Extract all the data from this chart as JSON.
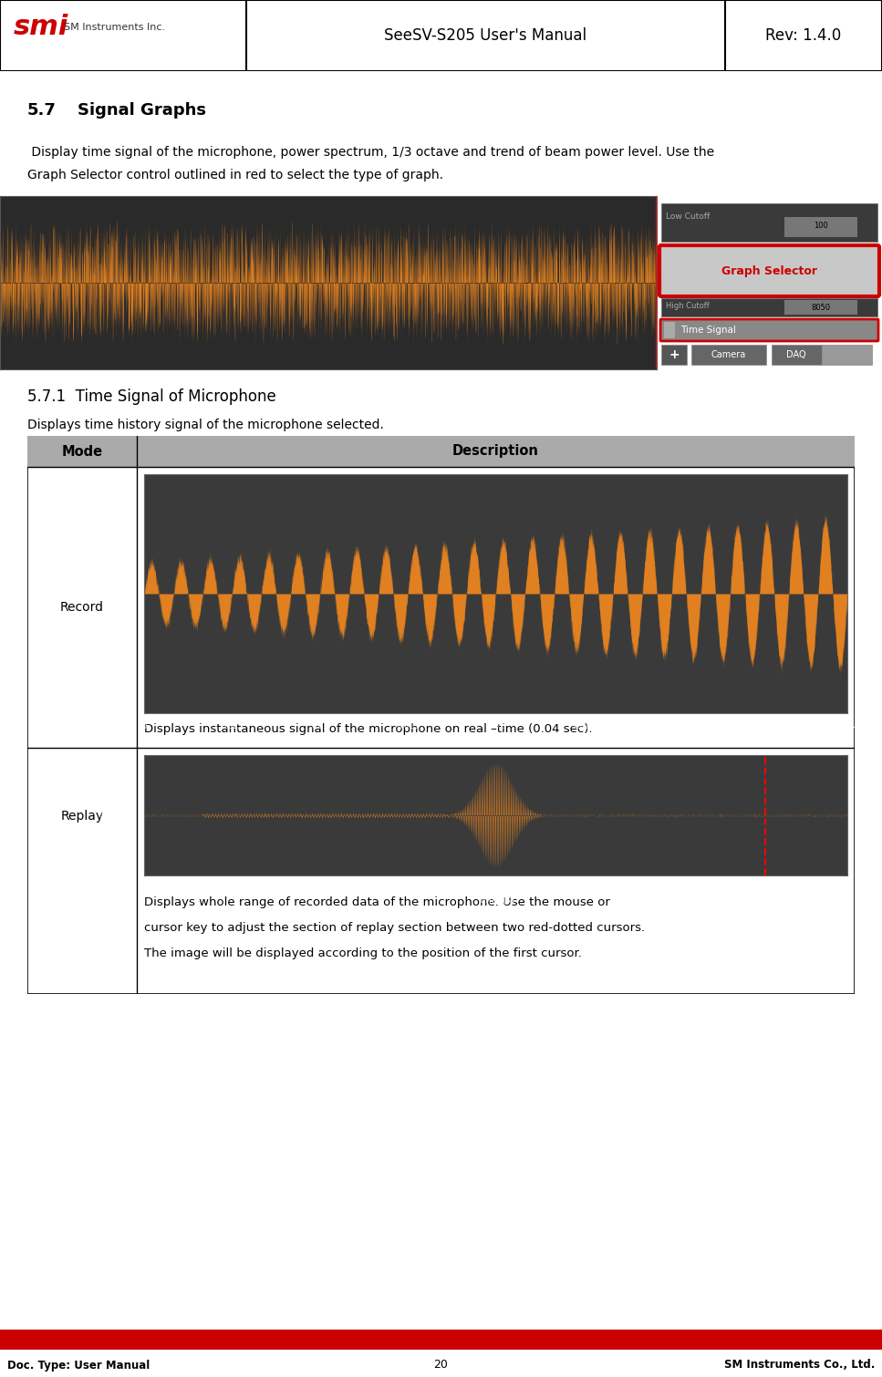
{
  "header_title": "SeeSV-S205 User's Manual",
  "header_rev": "Rev: 1.4.0",
  "footer_doc_type": "Doc. Type: User Manual",
  "footer_page": "20",
  "footer_company": "SM Instruments Co., Ltd.",
  "section_number": "5.7",
  "section_title": "Signal Graphs",
  "section_body_line1": " Display time signal of the microphone, power spectrum, 1/3 octave and trend of beam power level. Use the",
  "section_body_line2": "Graph Selector control outlined in red to select the type of graph.",
  "subsection_number": "5.7.1",
  "subsection_title": "Time Signal of Microphone",
  "subsection_body": "Displays time history signal of the microphone selected.",
  "table_col1": "Mode",
  "table_col2": "Description",
  "row1_mode": "Record",
  "row1_desc": "Displays instantaneous signal of the microphone on real –time (0.04 sec).",
  "row2_mode": "Replay",
  "row2_desc_line1": "Displays whole range of recorded data of the microphone. Use the mouse or",
  "row2_desc_line2": "cursor key to adjust the section of replay section between two red-dotted cursors.",
  "row2_desc_line3": "The image will be displayed according to the position of the first cursor.",
  "red_bar": "#cc0000",
  "logo_red": "#cc0000",
  "table_header_bg": "#aaaaaa",
  "table_border": "#000000",
  "body_bg": "#ffffff",
  "graph_bg_dark": "#3a3a3a",
  "graph_bg_inner": "#555555",
  "signal_orange": "#e08020",
  "graph_selector_red": "#cc0000"
}
